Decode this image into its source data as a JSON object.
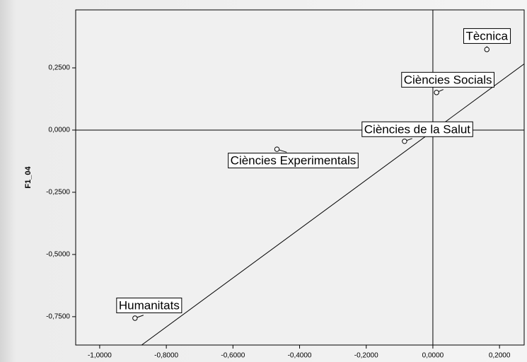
{
  "chart_data": {
    "type": "scatter",
    "y_label": "F1_04",
    "x": [
      0.162,
      0.011,
      -0.085,
      -0.468,
      -0.894
    ],
    "values": [
      0.324,
      0.151,
      -0.045,
      -0.077,
      -0.756
    ],
    "point_labels": [
      "Tècnica",
      "Ciències Socials",
      "Ciències de la Salut",
      "Ciències Experimentals",
      "Humanitats"
    ],
    "color": "#000000",
    "xlim": [
      -1.072,
      0.274
    ],
    "ylim": [
      -0.864,
      0.483
    ],
    "xticks": [
      {
        "value": -1.0,
        "label": "-1,0000"
      },
      {
        "value": -0.8,
        "label": "-0,8000"
      },
      {
        "value": -0.6,
        "label": "-0,6000"
      },
      {
        "value": -0.4,
        "label": "-0,4000"
      },
      {
        "value": -0.2,
        "label": "-0,2000"
      },
      {
        "value": 0,
        "label": "0,0000"
      },
      {
        "value": 0.2,
        "label": "0,2000"
      }
    ],
    "yticks": [
      {
        "value": -0.75,
        "label": "-0,7500"
      },
      {
        "value": -0.5,
        "label": "-0,5000"
      },
      {
        "value": -0.25,
        "label": "-0,2500"
      },
      {
        "value": 0,
        "label": "0,0000"
      },
      {
        "value": 0.25,
        "label": "0,2500"
      }
    ],
    "reference_lines": {
      "x": 0,
      "y": 0
    },
    "fit_line": {
      "x": [
        -0.874,
        0.274
      ],
      "y": [
        -0.864,
        0.266
      ]
    }
  }
}
